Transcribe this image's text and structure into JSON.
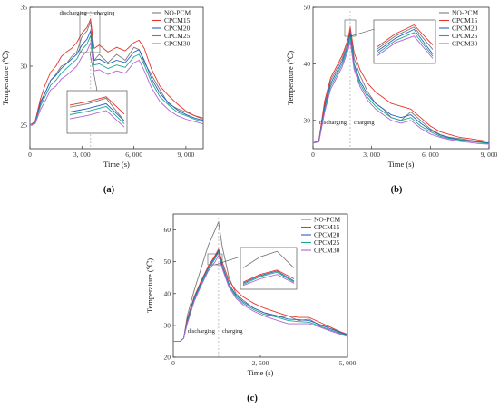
{
  "colors": {
    "NO-PCM": "#7a7a7a",
    "CPCM15": "#e8342a",
    "CPCM20": "#2a5fc4",
    "CPCM25": "#1aa88e",
    "CPCM30": "#b461d6"
  },
  "chart_data": [
    {
      "panel": "(a)",
      "type": "line",
      "xlabel": "Time (s)",
      "ylabel": "Temperature (℃)",
      "xlim": [
        0,
        10000
      ],
      "ylim": [
        23,
        35
      ],
      "xticks": [
        0,
        3000,
        6000,
        9000
      ],
      "xtick_labels": [
        "0",
        "3, 000",
        "6, 000",
        "9, 000"
      ],
      "yticks": [
        25,
        30,
        35
      ],
      "legend": [
        "NO-PCM",
        "CPCM15",
        "CPCM20",
        "CPCM25",
        "CPCM30"
      ],
      "legend_position": "top-right",
      "annotations": {
        "left": "discharging",
        "right": "charging",
        "divider_x": 3500
      },
      "series": [
        {
          "name": "NO-PCM",
          "x": [
            0,
            300,
            600,
            900,
            1200,
            1500,
            1800,
            2100,
            2400,
            2700,
            3000,
            3300,
            3500,
            3700,
            4000,
            4500,
            5000,
            5500,
            6000,
            6300,
            6600,
            7000,
            7500,
            8000,
            8500,
            9000,
            9500,
            10000
          ],
          "y": [
            25,
            25.3,
            27,
            27.8,
            28.8,
            29.3,
            30,
            30.2,
            30.8,
            31.2,
            32.5,
            33,
            33.8,
            30.5,
            31,
            30.3,
            31,
            30.5,
            31.6,
            31.4,
            30.3,
            29.3,
            28,
            26.8,
            26.4,
            26.1,
            25.8,
            25.6
          ]
        },
        {
          "name": "CPCM15",
          "x": [
            0,
            300,
            600,
            900,
            1200,
            1500,
            1800,
            2100,
            2400,
            2700,
            3000,
            3300,
            3500,
            3700,
            4000,
            4500,
            5000,
            5500,
            6000,
            6300,
            6600,
            7000,
            7500,
            8000,
            8500,
            9000,
            9500,
            10000
          ],
          "y": [
            25,
            25.3,
            27.2,
            28.5,
            29.5,
            30,
            30.8,
            31.2,
            31.5,
            32,
            32.8,
            33.3,
            34,
            31.5,
            31.8,
            31.2,
            31.6,
            31.3,
            32,
            32.2,
            31.5,
            29.8,
            28.3,
            27.5,
            26.8,
            26.2,
            25.8,
            25.5
          ]
        },
        {
          "name": "CPCM20",
          "x": [
            0,
            300,
            600,
            900,
            1200,
            1500,
            1800,
            2100,
            2400,
            2700,
            3000,
            3300,
            3500,
            3700,
            4000,
            4500,
            5000,
            5500,
            6000,
            6300,
            6600,
            7000,
            7500,
            8000,
            8500,
            9000,
            9500,
            10000
          ],
          "y": [
            25,
            25.2,
            26.8,
            27.8,
            28.8,
            29.2,
            29.8,
            30.2,
            30.6,
            31,
            31.8,
            32.3,
            33,
            30.5,
            30.6,
            30.2,
            30.5,
            30.3,
            31.2,
            31.4,
            30.5,
            29,
            27.7,
            26.9,
            26.3,
            25.9,
            25.6,
            25.4
          ]
        },
        {
          "name": "CPCM25",
          "x": [
            0,
            300,
            600,
            900,
            1200,
            1500,
            1800,
            2100,
            2400,
            2700,
            3000,
            3300,
            3500,
            3700,
            4000,
            4500,
            5000,
            5500,
            6000,
            6300,
            6600,
            7000,
            7500,
            8000,
            8500,
            9000,
            9500,
            10000
          ],
          "y": [
            25,
            25.2,
            26.6,
            27.5,
            28.4,
            28.8,
            29.4,
            29.8,
            30.2,
            30.6,
            31.4,
            31.9,
            32.6,
            30.1,
            30.2,
            29.8,
            30.1,
            29.9,
            30.8,
            31,
            30.1,
            28.7,
            27.4,
            26.7,
            26.1,
            25.8,
            25.5,
            25.3
          ]
        },
        {
          "name": "CPCM30",
          "x": [
            0,
            300,
            600,
            900,
            1200,
            1500,
            1800,
            2100,
            2400,
            2700,
            3000,
            3300,
            3500,
            3700,
            4000,
            4500,
            5000,
            5500,
            6000,
            6300,
            6600,
            7000,
            7500,
            8000,
            8500,
            9000,
            9500,
            10000
          ],
          "y": [
            25,
            25.1,
            26.3,
            27.1,
            28,
            28.3,
            28.9,
            29.2,
            29.6,
            30,
            30.8,
            31.3,
            32,
            29.6,
            29.7,
            29.3,
            29.6,
            29.4,
            30.3,
            30.5,
            29.6,
            28.2,
            27,
            26.3,
            25.8,
            25.5,
            25.3,
            25.1
          ]
        }
      ]
    },
    {
      "panel": "(b)",
      "type": "line",
      "xlabel": "Time (s)",
      "ylabel": "Temperature (℃)",
      "xlim": [
        0,
        9000
      ],
      "ylim": [
        25,
        50
      ],
      "xticks": [
        0,
        3000,
        6000,
        9000
      ],
      "xtick_labels": [
        "0",
        "3, 000",
        "6, 000",
        "9, 000"
      ],
      "yticks": [
        30,
        40,
        50
      ],
      "legend": [
        "NO-PCM",
        "CPCM15",
        "CPCM20",
        "CPCM25",
        "CPCM30"
      ],
      "legend_position": "top-right",
      "annotations": {
        "left": "discharging",
        "right": "charging",
        "divider_x": 1900
      },
      "series": [
        {
          "name": "NO-PCM",
          "x": [
            0,
            300,
            600,
            900,
            1200,
            1500,
            1800,
            1900,
            2100,
            2400,
            2800,
            3200,
            3600,
            4000,
            4500,
            5000,
            5500,
            6000,
            6500,
            7000,
            7500,
            8000,
            8500,
            9000
          ],
          "y": [
            26,
            26.5,
            33,
            37,
            39,
            41,
            44,
            46,
            41,
            38,
            35,
            33,
            32,
            30.5,
            30,
            31.5,
            30,
            28.5,
            27.5,
            27,
            26.8,
            26.5,
            26.3,
            26
          ]
        },
        {
          "name": "CPCM15",
          "x": [
            0,
            300,
            600,
            900,
            1200,
            1500,
            1800,
            1900,
            2100,
            2400,
            2800,
            3200,
            3600,
            4000,
            4500,
            5000,
            5500,
            6000,
            6500,
            7000,
            7500,
            8000,
            8500,
            9000
          ],
          "y": [
            26,
            26.5,
            33.5,
            37.5,
            39.5,
            41.5,
            44.5,
            46.5,
            42,
            39,
            36.5,
            35,
            34,
            33,
            32.5,
            32,
            30.5,
            29,
            28,
            27.5,
            27,
            26.8,
            26.5,
            26.3
          ]
        },
        {
          "name": "CPCM20",
          "x": [
            0,
            300,
            600,
            900,
            1200,
            1500,
            1800,
            1900,
            2100,
            2400,
            2800,
            3200,
            3600,
            4000,
            4500,
            5000,
            5500,
            6000,
            6500,
            7000,
            7500,
            8000,
            8500,
            9000
          ],
          "y": [
            26,
            26.4,
            32.5,
            36.5,
            38.5,
            40.5,
            43.5,
            45.5,
            40,
            37,
            34.5,
            33,
            32,
            31,
            30.5,
            31,
            29.5,
            28.3,
            27.4,
            26.9,
            26.6,
            26.4,
            26.2,
            26
          ]
        },
        {
          "name": "CPCM25",
          "x": [
            0,
            300,
            600,
            900,
            1200,
            1500,
            1800,
            1900,
            2100,
            2400,
            2800,
            3200,
            3600,
            4000,
            4500,
            5000,
            5500,
            6000,
            6500,
            7000,
            7500,
            8000,
            8500,
            9000
          ],
          "y": [
            26,
            26.3,
            32,
            36,
            38,
            40,
            43,
            44.8,
            39.5,
            36.5,
            34,
            32.5,
            31.5,
            30.5,
            30,
            30.5,
            29,
            28,
            27.2,
            26.8,
            26.5,
            26.3,
            26.1,
            25.9
          ]
        },
        {
          "name": "CPCM30",
          "x": [
            0,
            300,
            600,
            900,
            1200,
            1500,
            1800,
            1900,
            2100,
            2400,
            2800,
            3200,
            3600,
            4000,
            4500,
            5000,
            5500,
            6000,
            6500,
            7000,
            7500,
            8000,
            8500,
            9000
          ],
          "y": [
            26,
            26.2,
            31.5,
            35.5,
            37.5,
            39.5,
            42.5,
            44,
            39,
            36,
            33.5,
            32,
            31,
            30,
            29.5,
            30,
            28.6,
            27.6,
            27,
            26.6,
            26.3,
            26.1,
            25.9,
            25.8
          ]
        }
      ]
    },
    {
      "panel": "(c)",
      "type": "line",
      "xlabel": "Time (s)",
      "ylabel": "Temperature (℃)",
      "xlim": [
        0,
        5000
      ],
      "ylim": [
        20,
        65
      ],
      "xticks": [
        0,
        2500,
        5000
      ],
      "xtick_labels": [
        "0",
        "2, 500",
        "5, 000"
      ],
      "yticks": [
        20,
        30,
        40,
        50,
        60
      ],
      "legend": [
        "NO-PCM",
        "CPCM15",
        "CPCM20",
        "CPCM25",
        "CPCM30"
      ],
      "legend_position": "top-right",
      "annotations": {
        "left": "discharging",
        "right": "charging",
        "divider_x": 1300
      },
      "series": [
        {
          "name": "NO-PCM",
          "x": [
            0,
            200,
            300,
            400,
            600,
            800,
            1000,
            1200,
            1300,
            1400,
            1600,
            1800,
            2000,
            2300,
            2600,
            3000,
            3300,
            3600,
            3900,
            4200,
            4500,
            4800,
            5000
          ],
          "y": [
            25,
            25,
            26,
            33,
            41,
            48,
            55,
            60,
            62.5,
            55,
            45,
            40,
            38,
            35.5,
            34,
            32.5,
            33,
            31.5,
            32,
            30,
            29.5,
            27.5,
            27
          ]
        },
        {
          "name": "CPCM15",
          "x": [
            0,
            200,
            300,
            400,
            600,
            800,
            1000,
            1200,
            1300,
            1400,
            1600,
            1800,
            2000,
            2300,
            2600,
            3000,
            3300,
            3600,
            3900,
            4200,
            4500,
            4800,
            5000
          ],
          "y": [
            25,
            25,
            26,
            32,
            39,
            44,
            48.5,
            52,
            54,
            50,
            44,
            41,
            39,
            37,
            35.5,
            34,
            33,
            32.5,
            32.5,
            31,
            29.5,
            28,
            27.2
          ]
        },
        {
          "name": "CPCM20",
          "x": [
            0,
            200,
            300,
            400,
            600,
            800,
            1000,
            1200,
            1300,
            1400,
            1600,
            1800,
            2000,
            2300,
            2600,
            3000,
            3300,
            3600,
            3900,
            4200,
            4500,
            4800,
            5000
          ],
          "y": [
            25,
            25,
            26,
            31.5,
            38.5,
            43.5,
            48,
            51.5,
            53.5,
            49,
            43,
            39.5,
            37.5,
            35.5,
            34,
            33,
            32,
            31.8,
            31.5,
            30.3,
            29,
            27.8,
            27
          ]
        },
        {
          "name": "CPCM25",
          "x": [
            0,
            200,
            300,
            400,
            600,
            800,
            1000,
            1200,
            1300,
            1400,
            1600,
            1800,
            2000,
            2300,
            2600,
            3000,
            3300,
            3600,
            3900,
            4200,
            4500,
            4800,
            5000
          ],
          "y": [
            25,
            25,
            26,
            31,
            38,
            43,
            47.5,
            51,
            53,
            48.5,
            42.5,
            39,
            37,
            35,
            33.5,
            32.5,
            31.5,
            31.2,
            31,
            29.8,
            28.6,
            27.5,
            26.8
          ]
        },
        {
          "name": "CPCM30",
          "x": [
            0,
            200,
            300,
            400,
            600,
            800,
            1000,
            1200,
            1300,
            1400,
            1600,
            1800,
            2000,
            2300,
            2600,
            3000,
            3300,
            3600,
            3900,
            4200,
            4500,
            4800,
            5000
          ],
          "y": [
            25,
            25,
            26,
            30.5,
            37.5,
            42.5,
            47,
            50,
            52,
            48,
            42,
            38.5,
            36.5,
            34.5,
            33,
            31.5,
            30.5,
            30.5,
            30.5,
            29.5,
            28.3,
            27.2,
            26.5
          ]
        }
      ]
    }
  ]
}
